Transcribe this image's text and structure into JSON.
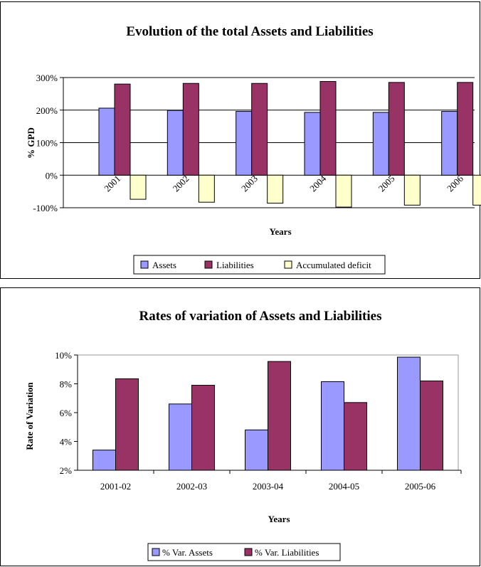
{
  "chart_data": [
    {
      "type": "bar",
      "title": "Evolution of the total Assets and Liabilities",
      "xlabel": "Years",
      "ylabel": "% GPD",
      "ylim": [
        -100,
        300
      ],
      "yticks": [
        "300%",
        "200%",
        "100%",
        "0%",
        "-100%"
      ],
      "categories": [
        "2001",
        "2002",
        "2003",
        "2004",
        "2005",
        "2006"
      ],
      "series": [
        {
          "name": "Assets",
          "color": "#9999FF",
          "values": [
            206,
            199,
            196,
            193,
            193,
            196
          ]
        },
        {
          "name": "Liabilities",
          "color": "#993366",
          "values": [
            280,
            282,
            282,
            288,
            285,
            285
          ]
        },
        {
          "name": "Accumulated deficit",
          "color": "#FFFFCC",
          "values": [
            -74,
            -83,
            -86,
            -98,
            -92,
            -92
          ]
        }
      ],
      "grid": true,
      "legend": "bottom"
    },
    {
      "type": "bar",
      "title": "Rates of variation of Assets and Liabilities",
      "xlabel": "Years",
      "ylabel": "Rate of Variation",
      "ylim": [
        2,
        10
      ],
      "yticks": [
        "10%",
        "8%",
        "6%",
        "4%",
        "2%"
      ],
      "categories": [
        "2001-02",
        "2002-03",
        "2003-04",
        "2004-05",
        "2005-06"
      ],
      "series": [
        {
          "name": "% Var. Assets",
          "color": "#9999FF",
          "values": [
            3.4,
            6.6,
            4.8,
            8.15,
            9.85
          ]
        },
        {
          "name": "% Var. Liabilities",
          "color": "#993366",
          "values": [
            8.35,
            7.9,
            9.55,
            6.7,
            8.2
          ]
        }
      ],
      "grid": false,
      "legend": "bottom"
    }
  ]
}
